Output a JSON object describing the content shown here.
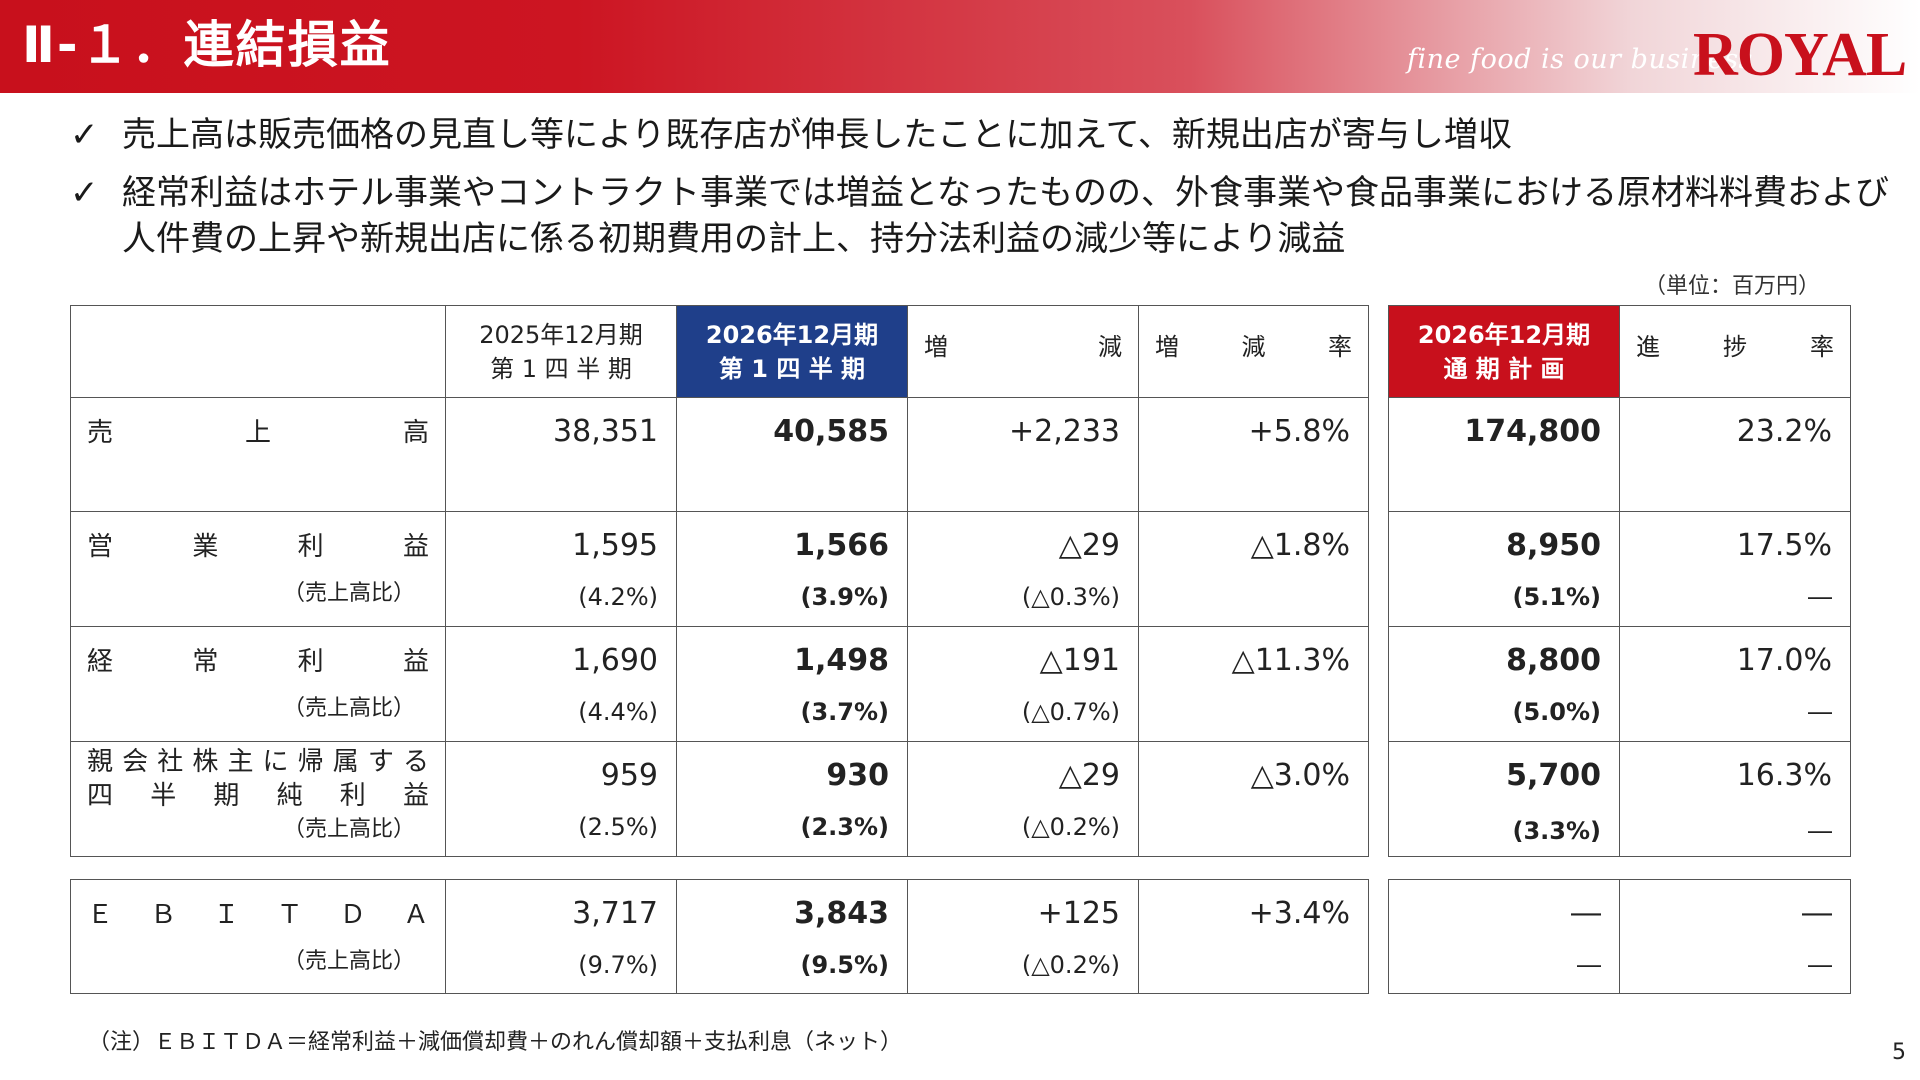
{
  "header": {
    "title": "Ⅱ-１．連結損益",
    "tagline": "fine food is our business",
    "brand": "ROYAL"
  },
  "bullets": [
    {
      "check": "✓",
      "text": "売上高は販売価格の見直し等により既存店が伸長したことに加えて、新規出店が寄与し増収"
    },
    {
      "check": "✓",
      "text": "経常利益はホテル事業やコントラクト事業では増益となったものの、外食事業や食品事業における原材料料費および人件費の上昇や新規出店に係る初期費用の計上、持分法利益の減少等により減益"
    }
  ],
  "unit_note": "（単位：百万円）",
  "table": {
    "headers": {
      "prev_l1": "2025年12月期",
      "prev_l2": "第 1 四 半 期",
      "curr_l1": "2026年12月期",
      "curr_l2": "第 1 四 半 期",
      "change": [
        "増",
        "減"
      ],
      "change_rate": [
        "増",
        "減",
        "率"
      ],
      "plan_l1": "2026年12月期",
      "plan_l2": "通 期 計 画",
      "progress": [
        "進",
        "捗",
        "率"
      ]
    },
    "ratio_label": "（売上高比）",
    "rows": [
      {
        "label_chars": [
          "売",
          "上",
          "高"
        ],
        "prev": "38,351",
        "curr": "40,585",
        "change": "+2,233",
        "rate": "+5.8%",
        "plan": "174,800",
        "progress": "23.2%"
      },
      {
        "label_chars": [
          "営",
          "業",
          "利",
          "益"
        ],
        "prev": "1,595",
        "curr": "1,566",
        "change": "△29",
        "rate": "△1.8%",
        "plan": "8,950",
        "progress": "17.5%",
        "prev_pct": "(4.2%)",
        "curr_pct": "(3.9%)",
        "change_pct": "(△0.3%)",
        "plan_pct": "(5.1%)",
        "progress_pct": "―"
      },
      {
        "label_chars": [
          "経",
          "常",
          "利",
          "益"
        ],
        "prev": "1,690",
        "curr": "1,498",
        "change": "△191",
        "rate": "△11.3%",
        "plan": "8,800",
        "progress": "17.0%",
        "prev_pct": "(4.4%)",
        "curr_pct": "(3.7%)",
        "change_pct": "(△0.7%)",
        "plan_pct": "(5.0%)",
        "progress_pct": "―"
      },
      {
        "label_l1_chars": [
          "親",
          "会",
          "社",
          "株",
          "主",
          "に",
          "帰",
          "属",
          "す",
          "る"
        ],
        "label_l2_chars": [
          "四",
          "半",
          "期",
          "純",
          "利",
          "益"
        ],
        "prev": "959",
        "curr": "930",
        "change": "△29",
        "rate": "△3.0%",
        "plan": "5,700",
        "progress": "16.3%",
        "prev_pct": "(2.5%)",
        "curr_pct": "(2.3%)",
        "change_pct": "(△0.2%)",
        "plan_pct": "(3.3%)",
        "progress_pct": "―"
      }
    ],
    "ebitda": {
      "label_chars": [
        "Ｅ",
        "Ｂ",
        "Ｉ",
        "Ｔ",
        "Ｄ",
        "Ａ"
      ],
      "prev": "3,717",
      "curr": "3,843",
      "change": "+125",
      "rate": "+3.4%",
      "plan": "―",
      "progress": "―",
      "prev_pct": "(9.7%)",
      "curr_pct": "(9.5%)",
      "change_pct": "(△0.2%)",
      "plan_pct": "―",
      "progress_pct": "―"
    }
  },
  "footnote": "（注）ＥＢＩＴＤＡ＝経常利益＋減価償却費＋のれん償却額＋支払利息（ネット）",
  "page_number": "5",
  "colors": {
    "accent_red": "#c8101c",
    "accent_blue": "#1f3f8a"
  }
}
